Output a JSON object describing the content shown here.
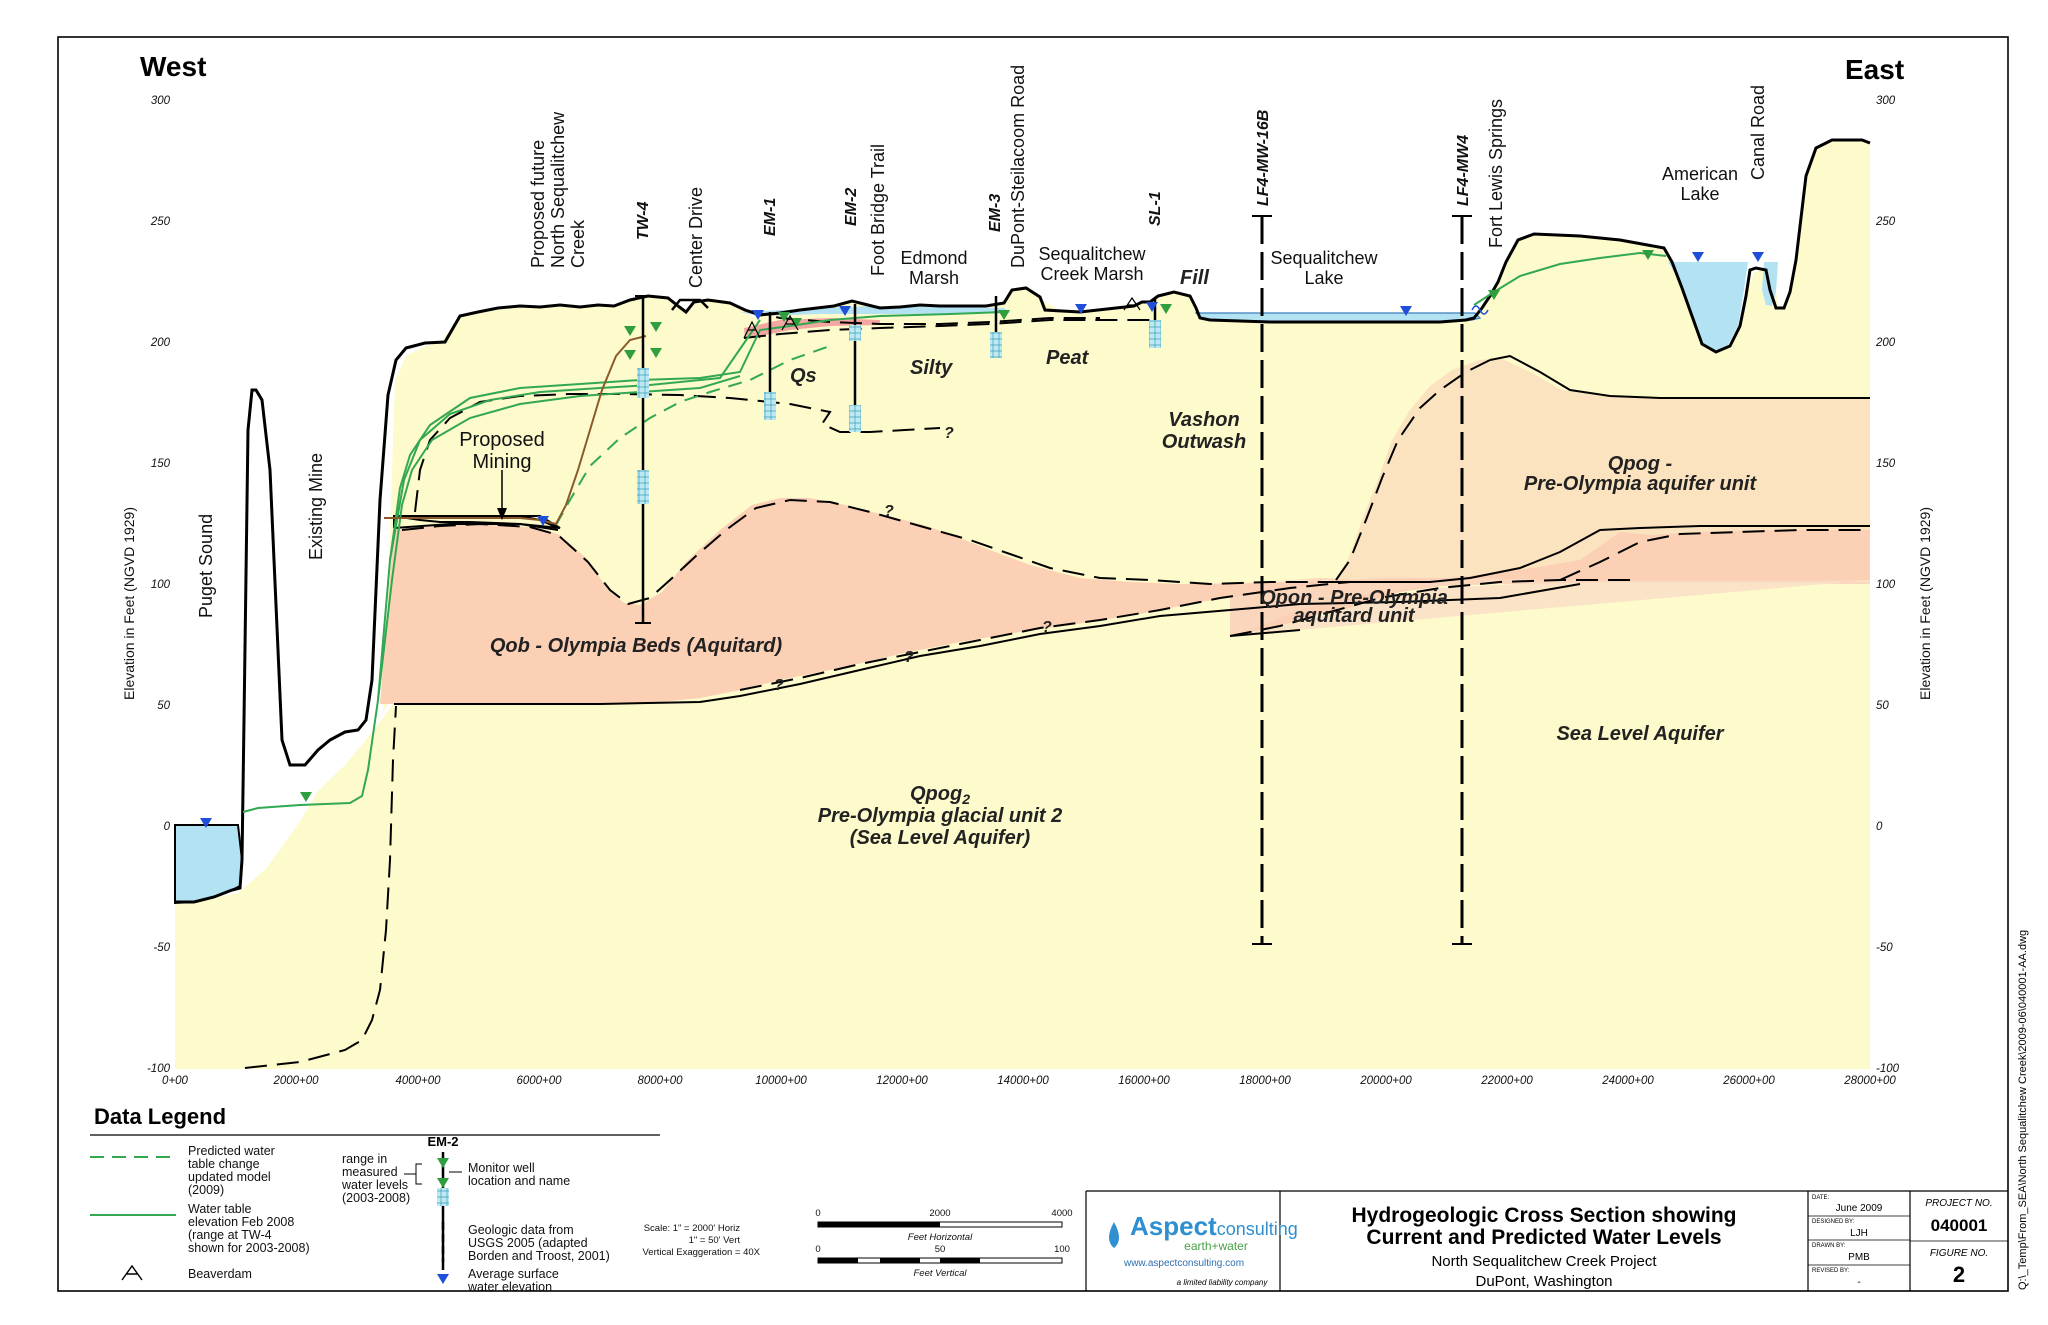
{
  "direction": {
    "west": "West",
    "east": "East"
  },
  "axis": {
    "ylabel": "Elevation in Feet (NGVD 1929)",
    "y_ticks": [
      "300",
      "250",
      "200",
      "150",
      "100",
      "50",
      "0",
      "-50",
      "-100"
    ],
    "x_ticks": [
      "0+00",
      "2000+00",
      "4000+00",
      "6000+00",
      "8000+00",
      "10000+00",
      "12000+00",
      "14000+00",
      "16000+00",
      "18000+00",
      "20000+00",
      "22000+00",
      "24000+00",
      "26000+00",
      "28000+00"
    ]
  },
  "features": {
    "puget_sound": "Puget Sound",
    "existing_mine": "Existing Mine",
    "proposed_creek": [
      "Proposed future",
      "North Sequalitchew",
      "Creek"
    ],
    "center_drive": "Center Drive",
    "foot_bridge": "Foot Bridge Trail",
    "edmond_marsh": [
      "Edmond",
      "Marsh"
    ],
    "dupont_road": "DuPont-Steilacoom Road",
    "creek_marsh": [
      "Sequalitchew",
      "Creek Marsh"
    ],
    "fill": "Fill",
    "lake": [
      "Sequalitchew",
      "Lake"
    ],
    "springs": "Fort Lewis Springs",
    "american_lake": [
      "American",
      "Lake"
    ],
    "canal_road": "Canal Road",
    "proposed_mining": [
      "Proposed",
      "Mining"
    ],
    "silty": "Silty",
    "peat": "Peat",
    "question": "?"
  },
  "wells": {
    "tw4": "TW-4",
    "em1": "EM-1",
    "em2": "EM-2",
    "em3": "EM-3",
    "sl1": "SL-1",
    "lf4_16b": "LF4-MW-16B",
    "lf4_mw4": "LF4-MW4"
  },
  "units": {
    "qs": "Qs",
    "vashon": [
      "Vashon",
      "Outwash"
    ],
    "qpog": [
      "Qpog -",
      "Pre-Olympia aquifer unit"
    ],
    "qpon": [
      "Qpon - Pre-Olympia",
      "aquitard unit"
    ],
    "qob": "Qob - Olympia Beds (Aquitard)",
    "sea_level": "Sea Level Aquifer",
    "qpog2": [
      "Qpog",
      "2",
      "Pre-Olympia glacial unit 2",
      "(Sea Level Aquifer)"
    ]
  },
  "legend": {
    "title": "Data Legend",
    "predicted": [
      "Predicted water",
      "table change",
      "updated model",
      "(2009)"
    ],
    "water_table": [
      "Water table",
      "elevation Feb 2008",
      "(range at TW-4",
      "shown for 2003-2008)"
    ],
    "beaverdam": "Beaverdam",
    "em2": "EM-2",
    "range": [
      "range in",
      "measured",
      "water levels",
      "(2003-2008)"
    ],
    "monitor": [
      "Monitor well",
      "location and name"
    ],
    "geologic": [
      "Geologic data from",
      "USGS 2005 (adapted",
      "Borden and Troost, 2001)"
    ],
    "surface": [
      "Average surface",
      "water elevation"
    ]
  },
  "scale": {
    "text": [
      "Scale: 1\" = 2000' Horiz",
      "1\" = 50' Vert",
      "Vertical Exaggeration = 40X"
    ],
    "h_ticks": [
      "0",
      "2000",
      "4000"
    ],
    "h_label": "Feet Horizontal",
    "v_ticks": [
      "0",
      "50",
      "100"
    ],
    "v_label": "Feet Vertical"
  },
  "logo": {
    "brand": "Aspect",
    "brand2": "consulting",
    "tagline": "earth+water",
    "url": "www.aspectconsulting.com",
    "llc": "a limited liability company"
  },
  "title_block": {
    "title1": "Hydrogeologic Cross Section showing",
    "title2": "Current and Predicted Water Levels",
    "project": "North Sequalitchew Creek Project",
    "location": "DuPont, Washington",
    "date_label": "DATE:",
    "date": "June 2009",
    "designed_label": "DESIGNED BY:",
    "designed": "LJH",
    "drawn_label": "DRAWN BY:",
    "drawn": "PMB",
    "revised_label": "REVISED BY:",
    "revised": "-",
    "project_no_label": "PROJECT NO.",
    "project_no": "040001",
    "figure_label": "FIGURE NO.",
    "figure": "2"
  },
  "filepath": "Q:\\_Temp\\From_SEA\\North Sequalitchew Creek\\2009-06\\040001-AA.dwg"
}
